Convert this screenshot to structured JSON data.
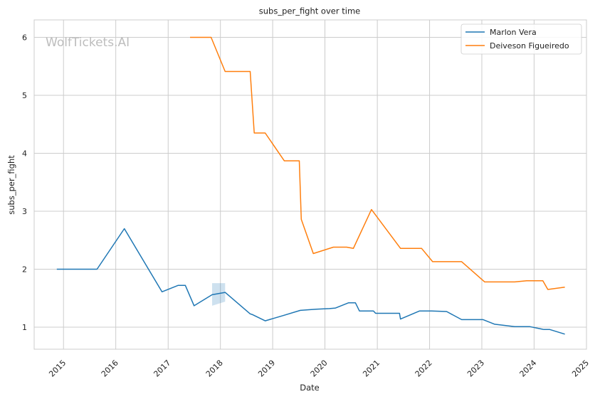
{
  "chart_data": {
    "type": "line",
    "title": "subs_per_fight over time",
    "xlabel": "Date",
    "ylabel": "subs_per_fight",
    "watermark": "WolfTickets.AI",
    "xlim": [
      "2014-06-10",
      "2025-01-01"
    ],
    "ylim": [
      0.62,
      6.3
    ],
    "x_ticks": [
      "2015",
      "2016",
      "2017",
      "2018",
      "2019",
      "2020",
      "2021",
      "2022",
      "2023",
      "2024",
      "2025"
    ],
    "y_ticks": [
      "1",
      "2",
      "3",
      "4",
      "5",
      "6"
    ],
    "grid": true,
    "legend_position": "top-right",
    "series": [
      {
        "name": "Marlon Vera",
        "color": "#1f77b4",
        "points": [
          [
            "2014-11-15",
            2.0
          ],
          [
            "2015-08-23",
            2.0
          ],
          [
            "2016-03-01",
            2.7
          ],
          [
            "2016-11-19",
            1.61
          ],
          [
            "2017-03-11",
            1.72
          ],
          [
            "2017-05-01",
            1.72
          ],
          [
            "2017-07-01",
            1.37
          ],
          [
            "2017-11-04",
            1.56
          ],
          [
            "2018-02-03",
            1.6
          ],
          [
            "2018-07-28",
            1.23
          ],
          [
            "2018-08-10",
            1.22
          ],
          [
            "2018-11-10",
            1.11
          ],
          [
            "2019-03-15",
            1.2
          ],
          [
            "2019-07-13",
            1.29
          ],
          [
            "2019-09-01",
            1.3
          ],
          [
            "2019-11-01",
            1.31
          ],
          [
            "2020-02-01",
            1.32
          ],
          [
            "2020-03-15",
            1.33
          ],
          [
            "2020-06-13",
            1.42
          ],
          [
            "2020-08-01",
            1.42
          ],
          [
            "2020-08-29",
            1.28
          ],
          [
            "2020-12-05",
            1.28
          ],
          [
            "2020-12-20",
            1.24
          ],
          [
            "2021-06-05",
            1.24
          ],
          [
            "2021-06-12",
            1.14
          ],
          [
            "2021-10-23",
            1.28
          ],
          [
            "2022-01-15",
            1.28
          ],
          [
            "2022-04-30",
            1.27
          ],
          [
            "2022-08-13",
            1.13
          ],
          [
            "2023-01-10",
            1.13
          ],
          [
            "2023-04-01",
            1.05
          ],
          [
            "2023-08-19",
            1.01
          ],
          [
            "2023-12-01",
            1.01
          ],
          [
            "2024-03-09",
            0.96
          ],
          [
            "2024-04-20",
            0.96
          ],
          [
            "2024-08-03",
            0.88
          ]
        ],
        "band": [
          [
            "2017-11-04",
            1.37,
            1.76
          ],
          [
            "2018-02-03",
            1.44,
            1.76
          ]
        ]
      },
      {
        "name": "Deiveson Figueiredo",
        "color": "#ff7f0e",
        "points": [
          [
            "2017-06-03",
            6.0
          ],
          [
            "2017-10-28",
            6.0
          ],
          [
            "2018-02-03",
            5.41
          ],
          [
            "2018-07-28",
            5.41
          ],
          [
            "2018-08-25",
            4.35
          ],
          [
            "2018-11-10",
            4.35
          ],
          [
            "2019-03-23",
            3.87
          ],
          [
            "2019-07-06",
            3.87
          ],
          [
            "2019-07-20",
            2.86
          ],
          [
            "2019-10-12",
            2.27
          ],
          [
            "2020-02-29",
            2.38
          ],
          [
            "2020-06-01",
            2.38
          ],
          [
            "2020-07-18",
            2.36
          ],
          [
            "2020-11-21",
            3.03
          ],
          [
            "2021-06-12",
            2.36
          ],
          [
            "2021-11-06",
            2.36
          ],
          [
            "2022-01-22",
            2.13
          ],
          [
            "2022-08-13",
            2.13
          ],
          [
            "2023-01-21",
            1.78
          ],
          [
            "2023-08-19",
            1.78
          ],
          [
            "2023-11-10",
            1.8
          ],
          [
            "2024-03-02",
            1.8
          ],
          [
            "2024-04-06",
            1.65
          ],
          [
            "2024-08-03",
            1.69
          ]
        ]
      }
    ]
  }
}
